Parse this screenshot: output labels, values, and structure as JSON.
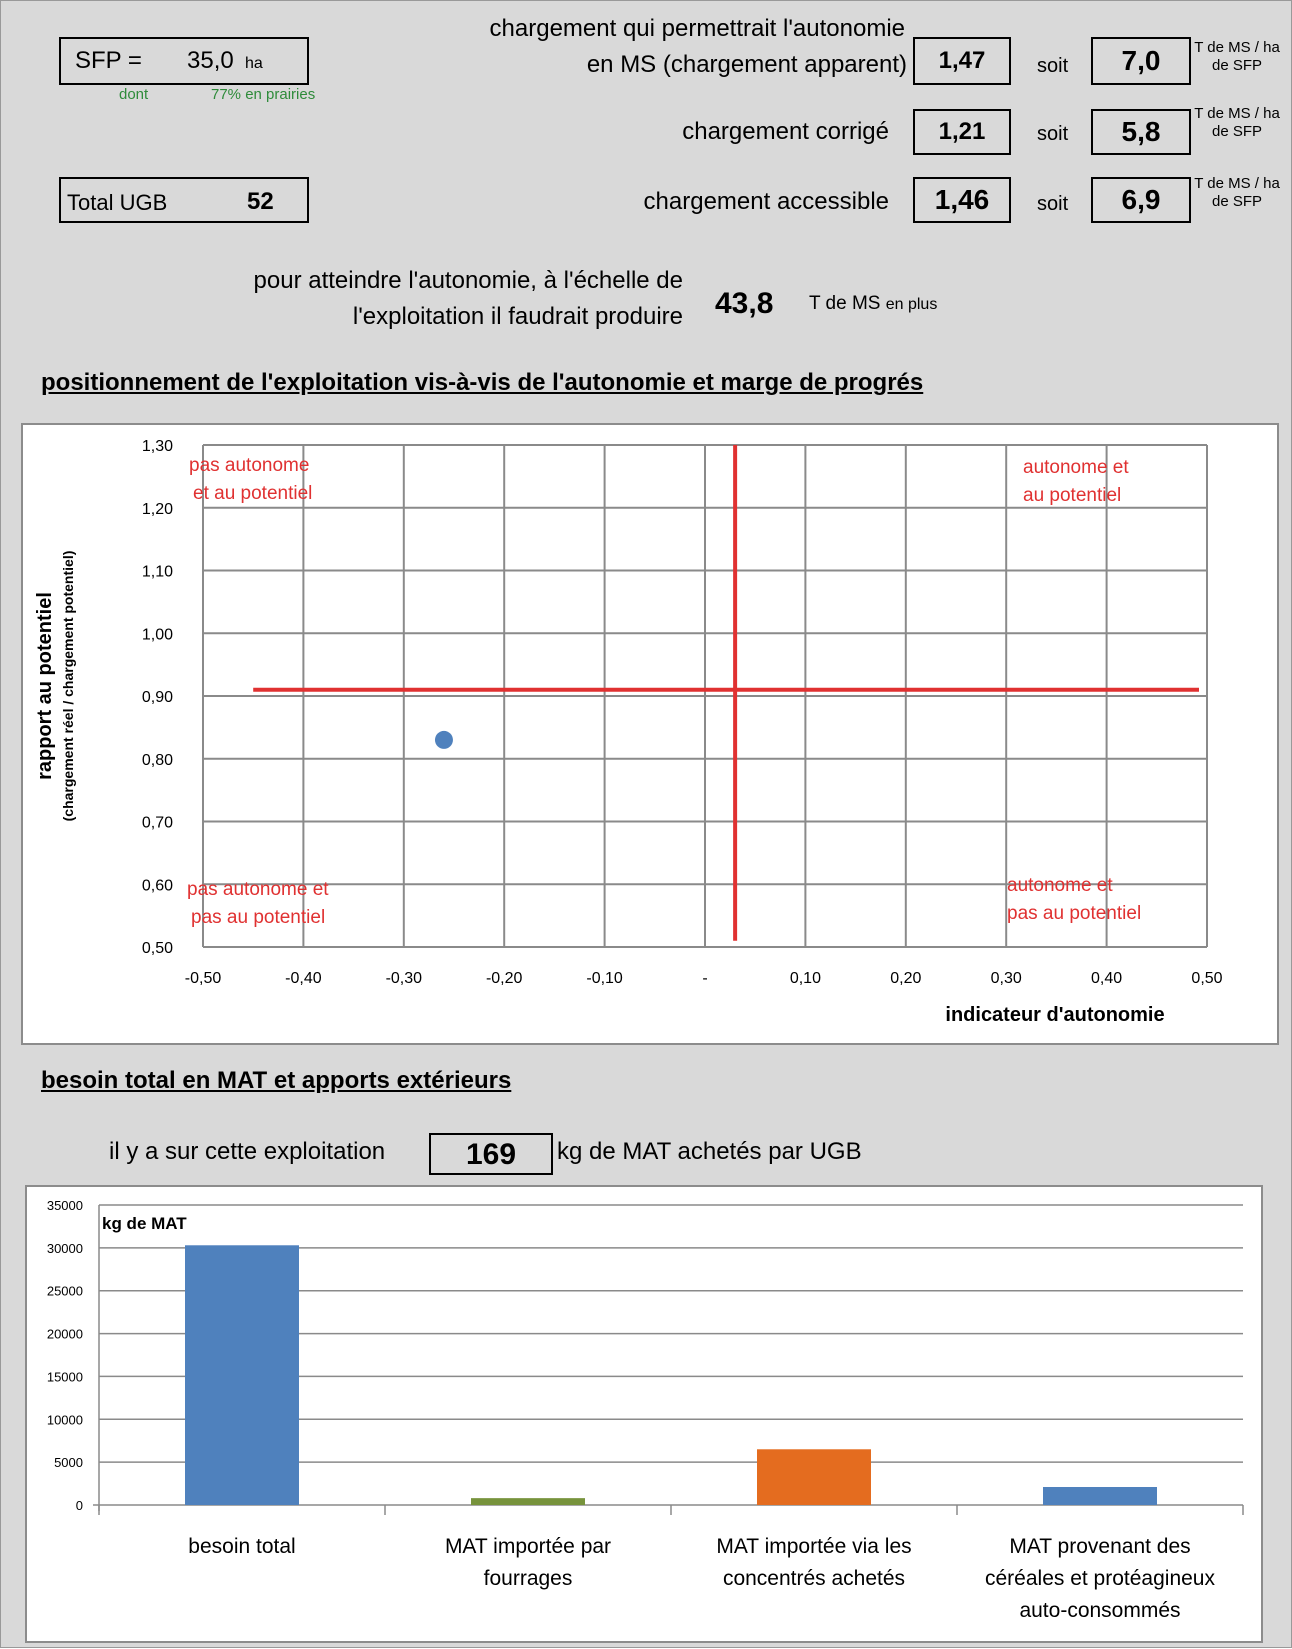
{
  "summary": {
    "sfp_label": "SFP =",
    "sfp_value": "35,0",
    "sfp_unit": "ha",
    "dont_label": "dont",
    "prairies_text": "77% en prairies",
    "ugb_label": "Total UGB",
    "ugb_value": "52"
  },
  "chargements": [
    {
      "label_line1": "chargement qui permettrait l'autonomie",
      "label_line2": "en MS (chargement apparent)",
      "value": "1,47",
      "soit": "soit",
      "tms": "7,0",
      "unit_line1": "T de MS / ha",
      "unit_line2": "de SFP"
    },
    {
      "label_line1": "chargement corrigé",
      "value": "1,21",
      "soit": "soit",
      "tms": "5,8",
      "unit_line1": "T de MS / ha",
      "unit_line2": "de SFP"
    },
    {
      "label_line1": "chargement accessible",
      "value": "1,46",
      "soit": "soit",
      "tms": "6,9",
      "unit_line1": "T de MS / ha",
      "unit_line2": "de SFP"
    }
  ],
  "production": {
    "line1": "pour atteindre l'autonomie, à l'échelle de",
    "line2": "l'exploitation il faudrait produire",
    "value": "43,8",
    "unit": "T de MS ",
    "unit_suffix": "en plus"
  },
  "sections": {
    "positionnement": "positionnement de l'exploitation vis-à-vis de l'autonomie et marge de progrés",
    "mat": "besoin total en MAT et apports extérieurs"
  },
  "mat_achete": {
    "prefix": "il y a sur cette exploitation",
    "value": "169",
    "suffix": "kg de MAT achetés par UGB"
  },
  "chart_data": [
    {
      "type": "scatter",
      "xlabel": "indicateur d'autonomie",
      "ylabel": "rapport au potentiel",
      "ylabel_sub": "(chargement réel / chargement potentiel)",
      "xlim": [
        -0.5,
        0.5
      ],
      "ylim": [
        0.5,
        1.3
      ],
      "x_ticks": [
        -0.5,
        -0.4,
        -0.3,
        -0.2,
        -0.1,
        0,
        0.1,
        0.2,
        0.3,
        0.4,
        0.5
      ],
      "x_tick_labels": [
        "-0,50",
        "-0,40",
        "-0,30",
        "-0,20",
        "-0,10",
        "-",
        "0,10",
        "0,20",
        "0,30",
        "0,40",
        "0,50"
      ],
      "y_ticks": [
        0.5,
        0.6,
        0.7,
        0.8,
        0.9,
        1.0,
        1.1,
        1.2,
        1.3
      ],
      "y_tick_labels": [
        "0,50",
        "0,60",
        "0,70",
        "0,80",
        "0,90",
        "1,00",
        "1,10",
        "1,20",
        "1,30"
      ],
      "grid": true,
      "points": [
        {
          "x": -0.26,
          "y": 0.83,
          "color": "#4f81bd"
        }
      ],
      "reference_lines": [
        {
          "orientation": "horizontal",
          "y": 0.91,
          "x_from": -0.45,
          "x_to": 0.5,
          "color": "#e03131"
        },
        {
          "orientation": "vertical",
          "x": 0.03,
          "y_from": 0.51,
          "y_to": 1.3,
          "color": "#e03131"
        }
      ],
      "quadrant_labels": [
        {
          "lines": [
            "pas autonome",
            "et au potentiel"
          ],
          "position": "top-left"
        },
        {
          "lines": [
            "autonome et",
            "au potentiel"
          ],
          "position": "top-right"
        },
        {
          "lines": [
            "pas autonome et",
            "pas au potentiel"
          ],
          "position": "bottom-left"
        },
        {
          "lines": [
            "autonome et",
            "pas au potentiel"
          ],
          "position": "bottom-right"
        }
      ],
      "quadrant_label_color": "#e03131"
    },
    {
      "type": "bar",
      "ylabel": "kg de MAT",
      "ylim": [
        0,
        35000
      ],
      "y_ticks": [
        0,
        5000,
        10000,
        15000,
        20000,
        25000,
        30000,
        35000
      ],
      "categories": [
        [
          "besoin total"
        ],
        [
          "MAT importée par",
          "fourrages"
        ],
        [
          "MAT importée via les",
          "concentrés achetés"
        ],
        [
          "MAT provenant des",
          "céréales et protéagineux",
          "auto-consommés"
        ]
      ],
      "values": [
        30300,
        800,
        6500,
        2100
      ],
      "colors": [
        "#4f81bd",
        "#77933c",
        "#e46c1f",
        "#4f81bd"
      ],
      "grid": true
    }
  ]
}
